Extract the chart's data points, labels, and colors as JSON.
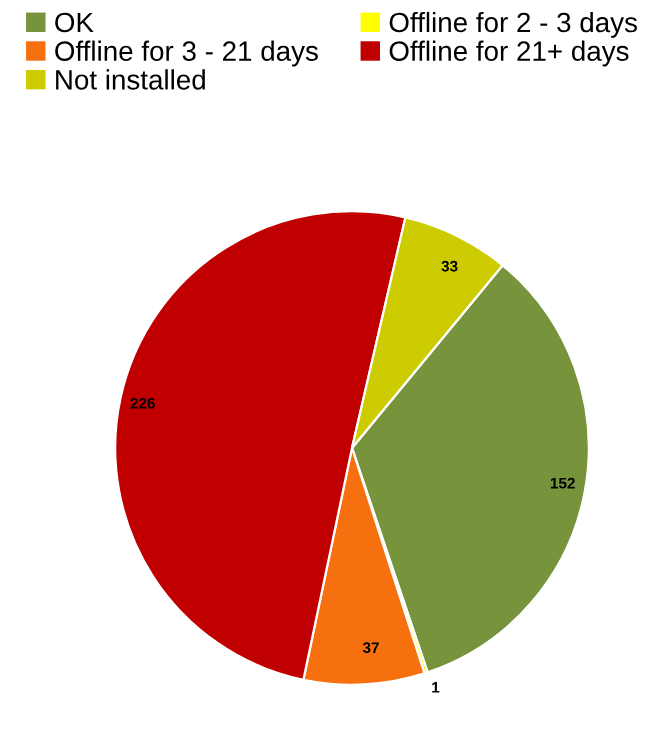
{
  "chart_data": {
    "type": "pie",
    "categories": [
      "OK",
      "Offline for 2 - 3 days",
      "Offline for 3 - 21 days",
      "Offline for 21+ days",
      "Not installed"
    ],
    "values": [
      152,
      1,
      37,
      226,
      33
    ],
    "colors": [
      "#77933c",
      "#ffff00",
      "#f7700f",
      "#c00000",
      "#cccc00"
    ],
    "data_labels": true,
    "legend": "top"
  }
}
